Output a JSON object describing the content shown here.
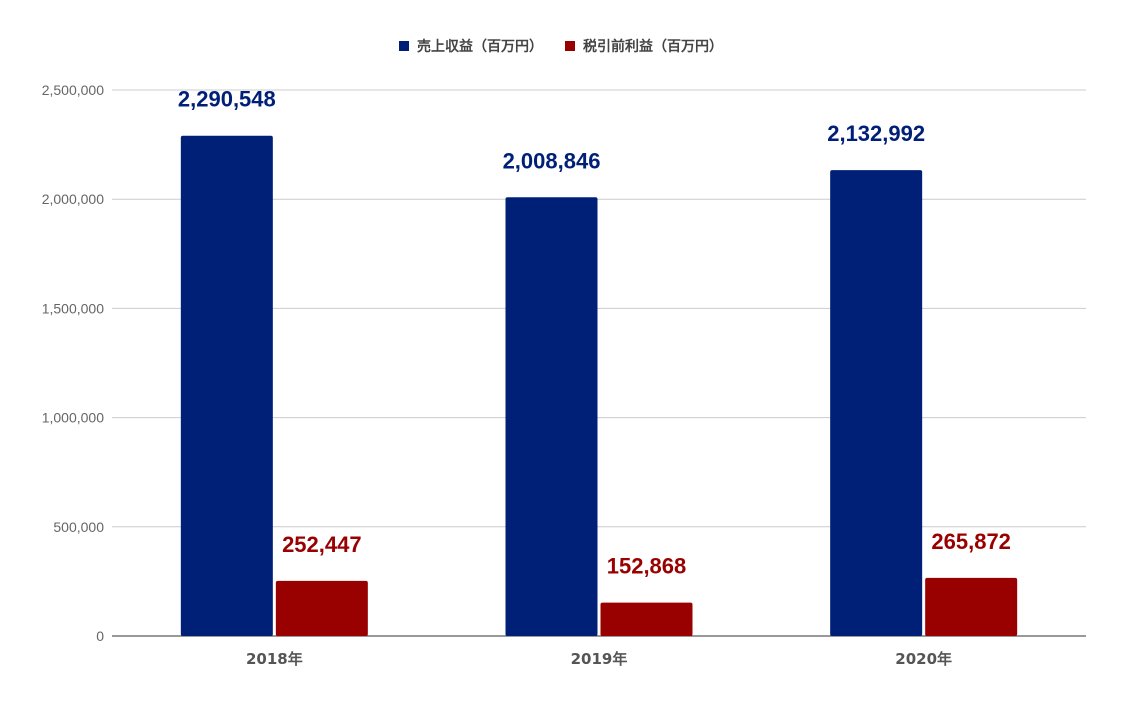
{
  "chart_data": {
    "type": "bar",
    "categories": [
      "2018年",
      "2019年",
      "2020年"
    ],
    "series": [
      {
        "name": "売上収益（百万円）",
        "color": "#002078",
        "values": [
          2290548,
          2008846,
          2132992
        ],
        "labels": [
          "2,290,548",
          "2,008,846",
          "2,132,992"
        ]
      },
      {
        "name": "税引前利益（百万円）",
        "color": "#990000",
        "values": [
          252447,
          152868,
          265872
        ],
        "labels": [
          "252,447",
          "152,868",
          "265,872"
        ]
      }
    ],
    "ylim": [
      0,
      2500000
    ],
    "yticks": [
      0,
      500000,
      1000000,
      1500000,
      2000000,
      2500000
    ],
    "ytick_labels": [
      "0",
      "500,000",
      "1,000,000",
      "1,500,000",
      "2,000,000",
      "2,500,000"
    ],
    "grid": true,
    "legend": "top-center",
    "title": "",
    "xlabel": "",
    "ylabel": ""
  }
}
